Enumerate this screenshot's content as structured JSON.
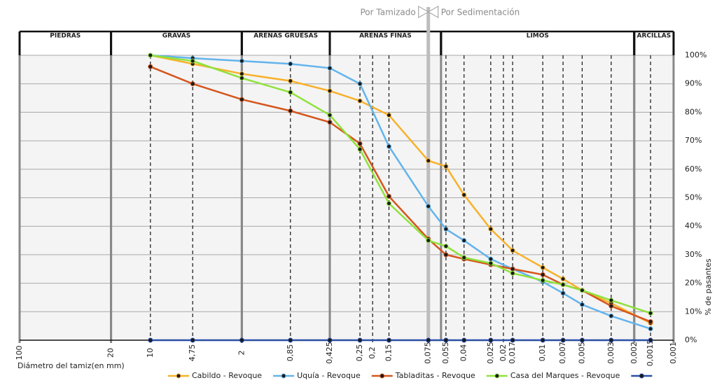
{
  "chart_data": {
    "type": "line",
    "x_label": "Diámetro del tamiz(en mm)",
    "y_label": "% de pasantes",
    "x_scale": "log",
    "xlim": [
      100,
      0.001
    ],
    "ylim": [
      0,
      100
    ],
    "grid": true,
    "legend": "bottom",
    "xticks": [
      100,
      20,
      10,
      {
        "value": 4.75,
        "label": "4,75"
      },
      2,
      {
        "value": 0.85,
        "label": "0,85"
      },
      {
        "value": 0.425,
        "label": "0,425"
      },
      {
        "value": 0.25,
        "label": "0,25"
      },
      {
        "value": 0.2,
        "label": "0,2"
      },
      {
        "value": 0.15,
        "label": "0,15"
      },
      {
        "value": 0.075,
        "label": "0,075"
      },
      {
        "value": 0.055,
        "label": "0,055"
      },
      {
        "value": 0.04,
        "label": "0,04"
      },
      {
        "value": 0.025,
        "label": "0,025"
      },
      {
        "value": 0.02,
        "label": "0,02"
      },
      {
        "value": 0.017,
        "label": "0,017"
      },
      {
        "value": 0.01,
        "label": "0,01"
      },
      {
        "value": 0.007,
        "label": "0,007"
      },
      {
        "value": 0.005,
        "label": "0,005"
      },
      {
        "value": 0.003,
        "label": "0,003"
      },
      {
        "value": 0.002,
        "label": "0,002"
      },
      {
        "value": 0.0015,
        "label": "0,0015"
      },
      {
        "value": 0.001,
        "label": "0,001"
      }
    ],
    "yticks": [
      {
        "value": 0,
        "label": "0%"
      },
      {
        "value": 10,
        "label": "10%"
      },
      {
        "value": 20,
        "label": "20%"
      },
      {
        "value": 30,
        "label": "30%"
      },
      {
        "value": 40,
        "label": "40%"
      },
      {
        "value": 50,
        "label": "50%"
      },
      {
        "value": 60,
        "label": "60%"
      },
      {
        "value": 70,
        "label": "70%"
      },
      {
        "value": 80,
        "label": "80%"
      },
      {
        "value": 90,
        "label": "90%"
      },
      {
        "value": 100,
        "label": "100%"
      }
    ],
    "zones": [
      {
        "name": "PIEDRAS",
        "from": 100,
        "to": 20
      },
      {
        "name": "GRAVAS",
        "from": 20,
        "to": 2
      },
      {
        "name": "ARENAS GRUESAS",
        "from": 2,
        "to": 0.425
      },
      {
        "name": "ARENAS FINAS",
        "from": 0.425,
        "to": 0.06
      },
      {
        "name": "LIMOS",
        "from": 0.06,
        "to": 0.002
      },
      {
        "name": "ARCILLAS",
        "from": 0.002,
        "to": 0.001
      }
    ],
    "method_split": {
      "at": 0.075,
      "left": "Por Tamizado",
      "right": "Por Sedimentación"
    },
    "x": [
      10,
      4.75,
      2,
      0.85,
      0.425,
      0.25,
      0.15,
      0.075,
      0.055,
      0.04,
      0.025,
      0.017,
      0.01,
      0.007,
      0.005,
      0.003,
      0.0015
    ],
    "series": [
      {
        "name": "Cabildo - Revoque",
        "color": "#f7b12a",
        "values": [
          100,
          97,
          93.5,
          91,
          87.5,
          84,
          79,
          63,
          61,
          51,
          39,
          31.5,
          25.5,
          21.5,
          17.5,
          13,
          6
        ]
      },
      {
        "name": "Uquía - Revoque",
        "color": "#62b4ec",
        "values": [
          100,
          99,
          98,
          97,
          95.5,
          90,
          68,
          47,
          39,
          35,
          28.5,
          25,
          20.5,
          16.5,
          12.5,
          8.5,
          4
        ]
      },
      {
        "name": "Tabladitas - Revoque",
        "color": "#d4561e",
        "values": [
          96,
          90,
          84.5,
          80.5,
          76.5,
          69,
          50.5,
          35.5,
          30,
          28.5,
          26.5,
          25,
          23,
          19.5,
          17.5,
          12,
          6.5
        ]
      },
      {
        "name": "Casa del Marques - Revoque",
        "color": "#8fe23c",
        "values": [
          100,
          98,
          92,
          87,
          79,
          67,
          48,
          35,
          33,
          29,
          27,
          23.5,
          21,
          19.5,
          17.5,
          14,
          9.5
        ]
      },
      {
        "name": null,
        "color": "#2a4fa6",
        "values": [
          0,
          0,
          0,
          0,
          0,
          0,
          0,
          0,
          0,
          0,
          0,
          0,
          0,
          0,
          0,
          0,
          0
        ]
      }
    ]
  }
}
